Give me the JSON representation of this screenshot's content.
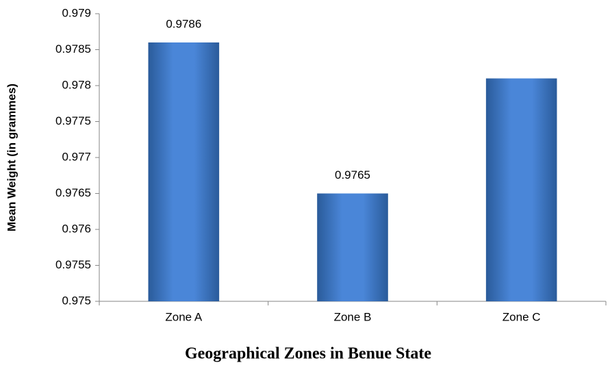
{
  "chart_data": {
    "type": "bar",
    "x_label": "Geographical Zones in Benue State",
    "y_label": "Mean Weight (in grammes)",
    "categories": [
      "Zone A",
      "Zone B",
      "Zone C"
    ],
    "values": [
      0.9786,
      0.9765,
      0.9781
    ],
    "value_labels": [
      "0.9786",
      "0.9765",
      null
    ],
    "color": "#4a86d8",
    "ylim": [
      0.975,
      0.979
    ],
    "yticks": [
      0.975,
      0.9755,
      0.976,
      0.9765,
      0.977,
      0.9775,
      0.978,
      0.9785,
      0.979
    ],
    "grid": false
  }
}
